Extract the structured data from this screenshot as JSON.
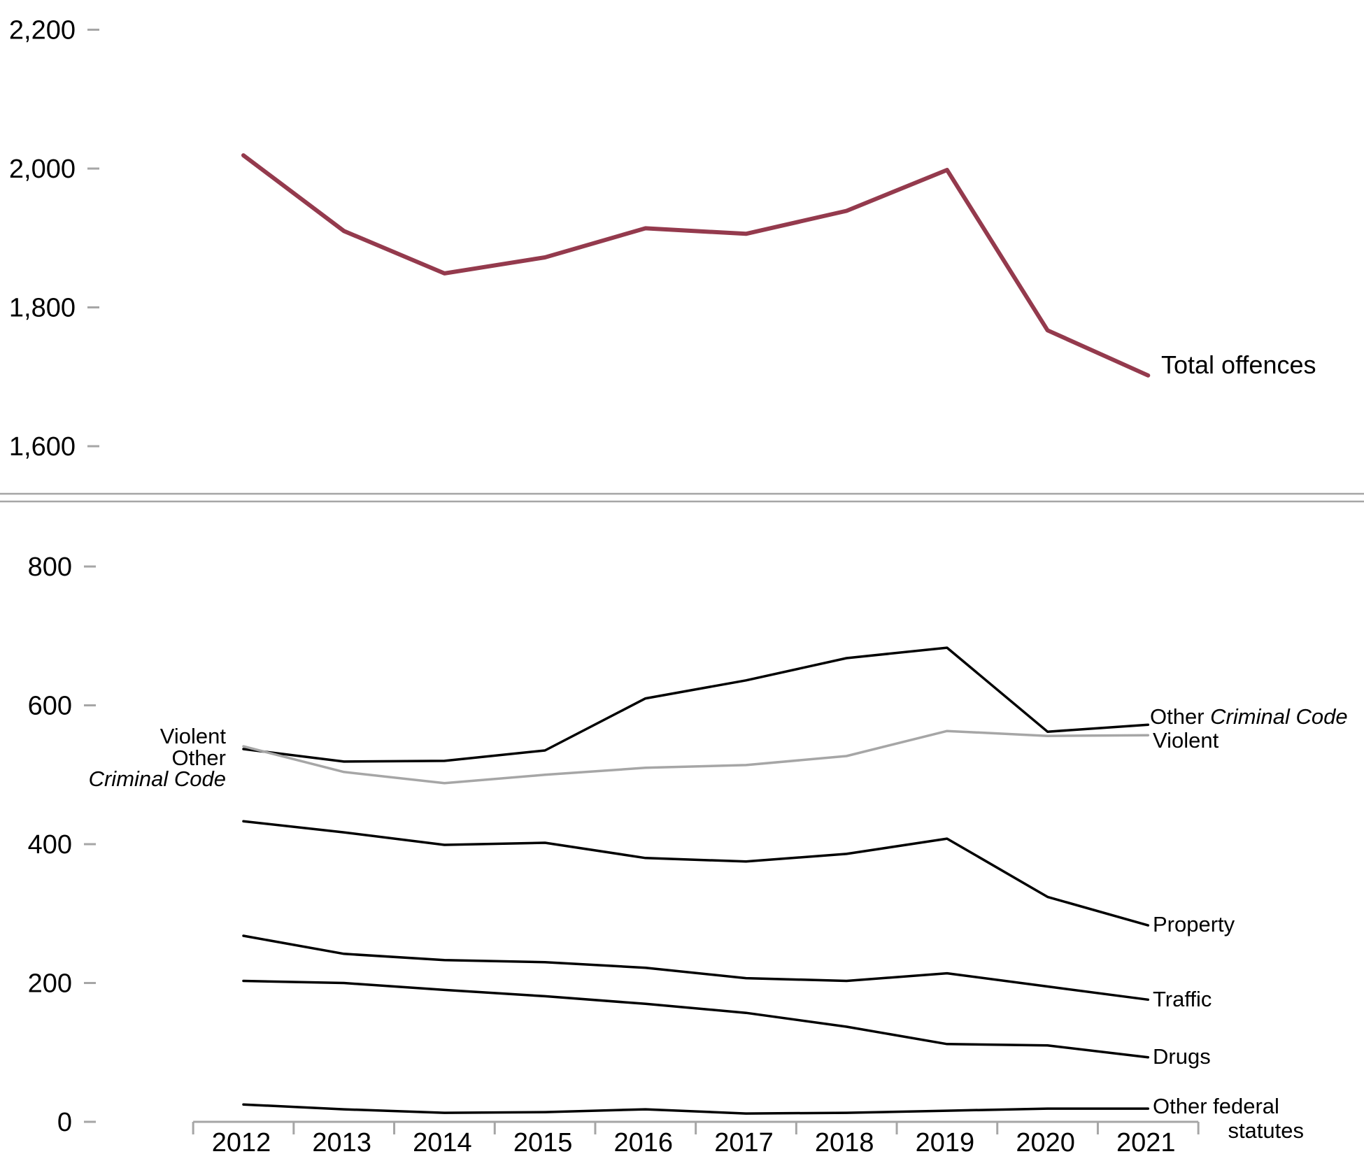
{
  "chart_data": [
    {
      "type": "line",
      "panel": "top",
      "title": "",
      "xlabel": "",
      "ylabel": "",
      "ylim": [
        1560,
        2240
      ],
      "yticks": [
        "1,600",
        "1,800",
        "2,000",
        "2,200"
      ],
      "ytick_values": [
        1600,
        1800,
        2000,
        2200
      ],
      "x": [
        2012,
        2013,
        2014,
        2015,
        2016,
        2017,
        2018,
        2019,
        2020,
        2021
      ],
      "series": [
        {
          "name": "Total offences",
          "color": "#943a4d",
          "values": [
            2019,
            1910,
            1849,
            1872,
            1914,
            1906,
            1939,
            1998,
            1767,
            1702
          ]
        }
      ],
      "grid": false
    },
    {
      "type": "line",
      "panel": "bottom",
      "title": "",
      "xlabel": "",
      "ylabel": "",
      "ylim": [
        0,
        850
      ],
      "yticks": [
        "0",
        "200",
        "400",
        "600",
        "800"
      ],
      "ytick_values": [
        0,
        200,
        400,
        600,
        800
      ],
      "categories": [
        "2012",
        "2013",
        "2014",
        "2015",
        "2016",
        "2017",
        "2018",
        "2019",
        "2020",
        "2021"
      ],
      "x": [
        2012,
        2013,
        2014,
        2015,
        2016,
        2017,
        2018,
        2019,
        2020,
        2021
      ],
      "series": [
        {
          "name": "Other Criminal Code",
          "color": "#000000",
          "values": [
            537,
            519,
            520,
            535,
            610,
            636,
            668,
            683,
            562,
            572
          ],
          "left_label": [
            "Other",
            "Criminal Code"
          ],
          "right_label": [
            "Other ",
            "Criminal Code"
          ]
        },
        {
          "name": "Violent",
          "color": "#a6a6a6",
          "values": [
            541,
            504,
            488,
            500,
            510,
            514,
            527,
            563,
            556,
            557
          ],
          "left_label": [
            "Violent"
          ],
          "right_label": [
            "Violent"
          ]
        },
        {
          "name": "Property",
          "color": "#000000",
          "values": [
            433,
            417,
            399,
            402,
            380,
            375,
            386,
            408,
            324,
            283
          ],
          "right_label": [
            "Property"
          ]
        },
        {
          "name": "Traffic",
          "color": "#000000",
          "values": [
            268,
            242,
            233,
            230,
            222,
            207,
            203,
            214,
            195,
            176
          ],
          "right_label": [
            "Traffic"
          ]
        },
        {
          "name": "Drugs",
          "color": "#000000",
          "values": [
            203,
            200,
            190,
            181,
            170,
            157,
            137,
            112,
            110,
            93
          ],
          "right_label": [
            "Drugs"
          ]
        },
        {
          "name": "Other federal statutes",
          "color": "#000000",
          "values": [
            25,
            18,
            13,
            14,
            18,
            12,
            13,
            16,
            19,
            19
          ],
          "right_label": [
            "Other federal",
            "statutes"
          ]
        }
      ],
      "grid": false
    }
  ],
  "colors": {
    "axis": "#a6a6a6",
    "divider": "#a6a6a6"
  }
}
